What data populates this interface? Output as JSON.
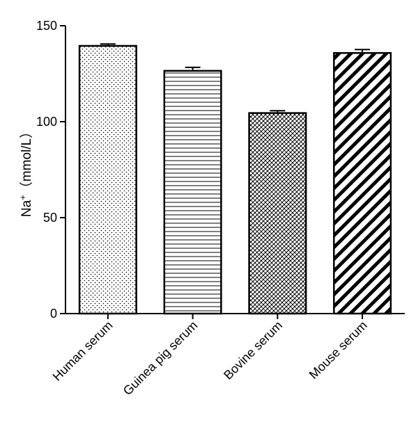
{
  "chart_data": {
    "type": "bar",
    "title": "",
    "xlabel": "",
    "ylabel": "Na⁺（mmol/L）",
    "ylabel_parts": {
      "base": "Na",
      "sup": "+",
      "unit": "（mmol/L）"
    },
    "categories": [
      "Human serum",
      "Guinea pig serum",
      "Bovine serum",
      "Mouse serum"
    ],
    "values": [
      139.5,
      126.5,
      104.5,
      135.8
    ],
    "errors": [
      1.0,
      1.8,
      1.2,
      1.8
    ],
    "patterns": [
      "dots",
      "horizontal-lines",
      "crosshatch",
      "diagonal-stripes"
    ],
    "ylim": [
      0,
      150
    ],
    "yticks": [
      0,
      50,
      100,
      150
    ],
    "grid": false,
    "legend": "none"
  }
}
